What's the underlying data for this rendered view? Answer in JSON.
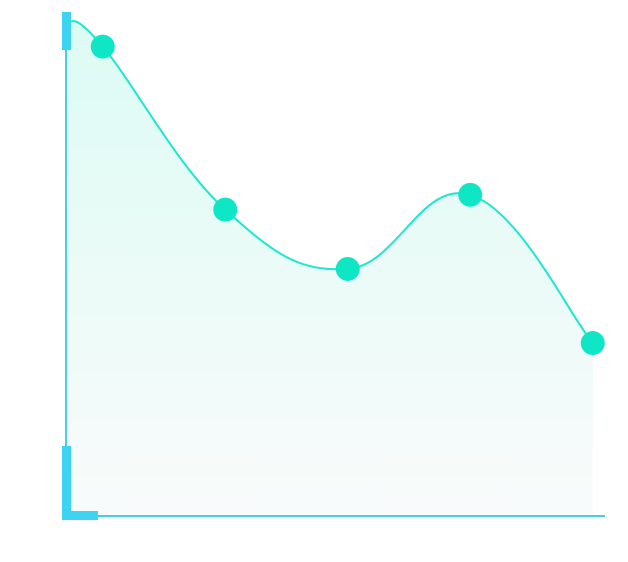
{
  "chart_data": {
    "type": "area",
    "title": "",
    "xlabel": "",
    "ylabel": "",
    "points": [
      {
        "x": 1,
        "y": 95
      },
      {
        "x": 2,
        "y": 62
      },
      {
        "x": 3,
        "y": 50
      },
      {
        "x": 4,
        "y": 65
      },
      {
        "x": 5,
        "y": 35
      }
    ],
    "xlim": [
      0.7,
      5.1
    ],
    "ylim": [
      0,
      102
    ],
    "grid": false,
    "colors": {
      "line": "#1de8cf",
      "marker": "#0fe6c6",
      "axis": "#44d0e6",
      "axis_accent": "#3fd3f2",
      "fill_top": "#dcfbf4",
      "fill_bottom": "#f9fbfb"
    }
  }
}
